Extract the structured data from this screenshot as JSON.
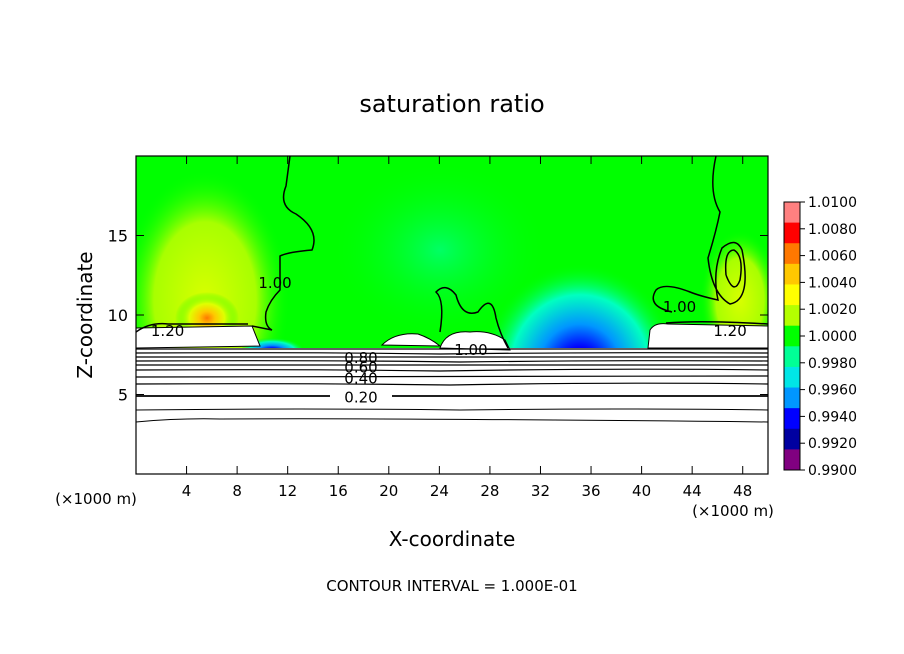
{
  "chart_data": {
    "type": "heatmap",
    "title": "saturation ratio",
    "xlabel": "X-coordinate",
    "ylabel": "Z-coordinate",
    "x_unit": "(×1000 m)",
    "y_unit": "(×1000 m)",
    "xlim": [
      0,
      50
    ],
    "ylim": [
      0,
      20
    ],
    "x_ticks": [
      4,
      8,
      12,
      16,
      20,
      24,
      28,
      32,
      36,
      40,
      44,
      48
    ],
    "y_ticks": [
      5,
      10,
      15
    ],
    "colorbar": {
      "min": 0.99,
      "max": 1.01,
      "ticks": [
        "1.0100",
        "1.0080",
        "1.0060",
        "1.0040",
        "1.0020",
        "1.0000",
        "0.9980",
        "0.9960",
        "0.9940",
        "0.9920",
        "0.9900"
      ],
      "colors": [
        "#ff8080",
        "#ff0000",
        "#ff7800",
        "#ffc800",
        "#ffff00",
        "#b4ff00",
        "#00ff00",
        "#00ff96",
        "#00e6e6",
        "#0096ff",
        "#0000ff",
        "#0000a0",
        "#800080"
      ]
    },
    "contour_labels": [
      {
        "text": "1.00",
        "x": 11.0,
        "z": 12.0
      },
      {
        "text": "1.00",
        "x": 43.0,
        "z": 10.5
      },
      {
        "text": "1.00",
        "x": 26.5,
        "z": 7.8
      },
      {
        "text": "1.20",
        "x": 2.5,
        "z": 9.0
      },
      {
        "text": "1.20",
        "x": 47.0,
        "z": 9.0
      },
      {
        "text": "0.80",
        "x": 17.8,
        "z": 7.3
      },
      {
        "text": "0.60",
        "x": 17.8,
        "z": 6.7
      },
      {
        "text": "0.40",
        "x": 17.8,
        "z": 6.0
      },
      {
        "text": "0.20",
        "x": 17.8,
        "z": 4.8
      }
    ],
    "footer": "CONTOUR INTERVAL = 1.000E-01"
  }
}
